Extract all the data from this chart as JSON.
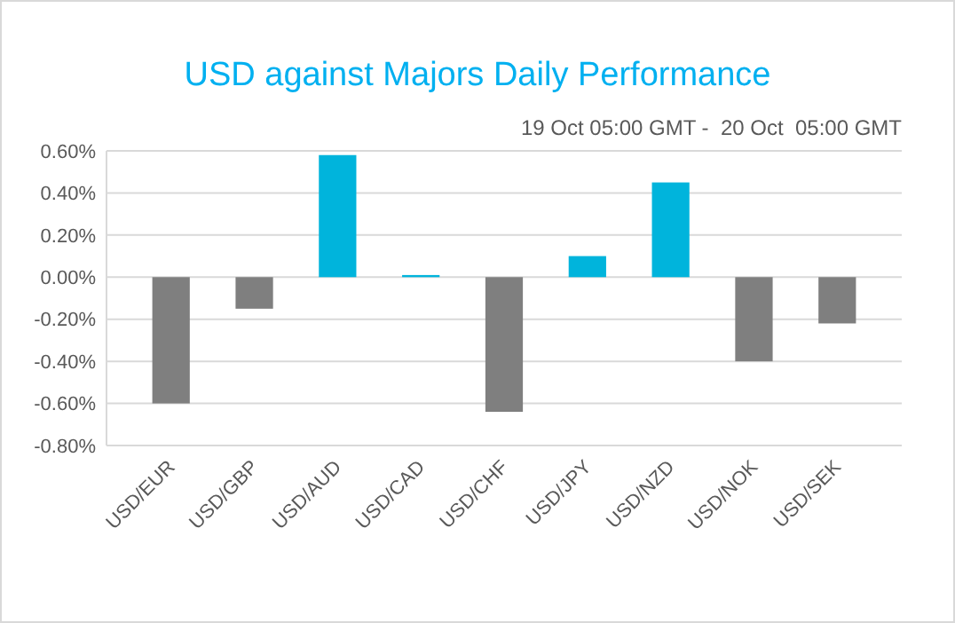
{
  "chart_data": {
    "type": "bar",
    "title": "USD against Majors Daily Performance",
    "subtitle": "19 Oct 05:00 GMT -  20 Oct  05:00 GMT",
    "categories": [
      "USD/EUR",
      "USD/GBP",
      "USD/AUD",
      "USD/CAD",
      "USD/CHF",
      "USD/JPY",
      "USD/NZD",
      "USD/NOK",
      "USD/SEK"
    ],
    "values": [
      -0.6,
      -0.15,
      0.58,
      0.01,
      -0.64,
      0.1,
      0.45,
      -0.4,
      -0.22
    ],
    "colors": [
      "#7f7f7f",
      "#7f7f7f",
      "#00b4dc",
      "#00b4dc",
      "#7f7f7f",
      "#00b4dc",
      "#00b4dc",
      "#7f7f7f",
      "#7f7f7f"
    ],
    "ylim": [
      -0.8,
      0.6
    ],
    "yticks": [
      {
        "value": -0.8,
        "label": "-0.80%"
      },
      {
        "value": -0.6,
        "label": "-0.60%"
      },
      {
        "value": -0.4,
        "label": "-0.40%"
      },
      {
        "value": -0.2,
        "label": "-0.20%"
      },
      {
        "value": 0,
        "label": "0.00%"
      },
      {
        "value": 0.2,
        "label": "0.20%"
      },
      {
        "value": 0.4,
        "label": "0.40%"
      },
      {
        "value": 0.6,
        "label": "0.60%"
      }
    ],
    "grid": true
  }
}
